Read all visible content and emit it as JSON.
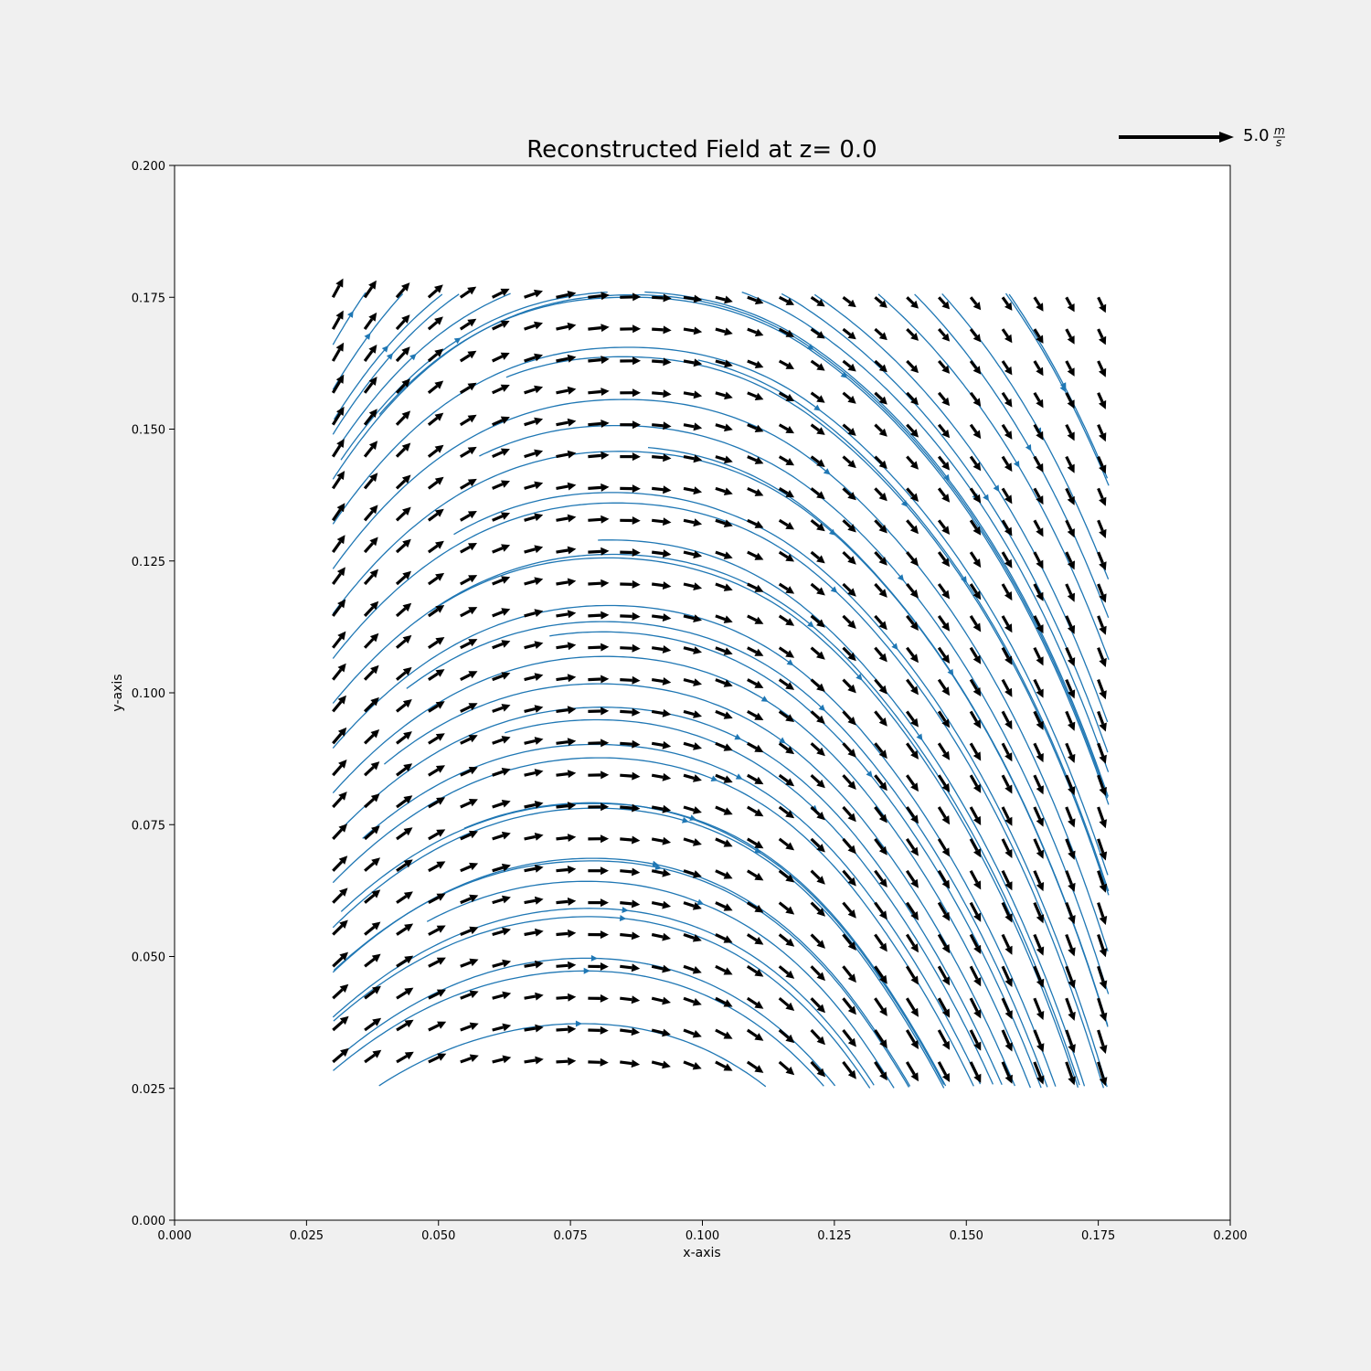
{
  "chart_data": {
    "type": "quiver",
    "title": "Reconstructed Field at z= 0.0",
    "xlabel": "x-axis",
    "ylabel": "y-axis",
    "xlim": [
      0.0,
      0.2
    ],
    "ylim": [
      0.0,
      0.2
    ],
    "xticks": [
      "0.000",
      "0.025",
      "0.050",
      "0.075",
      "0.100",
      "0.125",
      "0.150",
      "0.175",
      "0.200"
    ],
    "yticks": [
      "0.000",
      "0.025",
      "0.050",
      "0.075",
      "0.100",
      "0.125",
      "0.150",
      "0.175",
      "0.200"
    ],
    "grid": false,
    "quiver_key": {
      "value": 5.0,
      "label_value": "5.0",
      "units_numerator": "m",
      "units_denominator": "s"
    },
    "field_grid": {
      "x_range": [
        0.03,
        0.175
      ],
      "y_range": [
        0.03,
        0.175
      ],
      "nx": 25,
      "ny": 25
    },
    "field_samples": [
      {
        "x": 0.03,
        "y": 0.175,
        "u": 1.8,
        "v": 3.3
      },
      {
        "x": 0.08,
        "y": 0.175,
        "u": 3.8,
        "v": 0.3
      },
      {
        "x": 0.12,
        "y": 0.175,
        "u": 2.4,
        "v": -1.6
      },
      {
        "x": 0.175,
        "y": 0.175,
        "u": 1.3,
        "v": -2.7
      },
      {
        "x": 0.03,
        "y": 0.03,
        "u": 2.8,
        "v": 2.4
      },
      {
        "x": 0.08,
        "y": 0.03,
        "u": 3.6,
        "v": -0.2
      },
      {
        "x": 0.13,
        "y": 0.03,
        "u": 2.2,
        "v": -3.2
      },
      {
        "x": 0.175,
        "y": 0.03,
        "u": 1.3,
        "v": -4.2
      }
    ],
    "streamlines": {
      "color": "#1f77b4"
    },
    "arrow_color": "#000000"
  }
}
